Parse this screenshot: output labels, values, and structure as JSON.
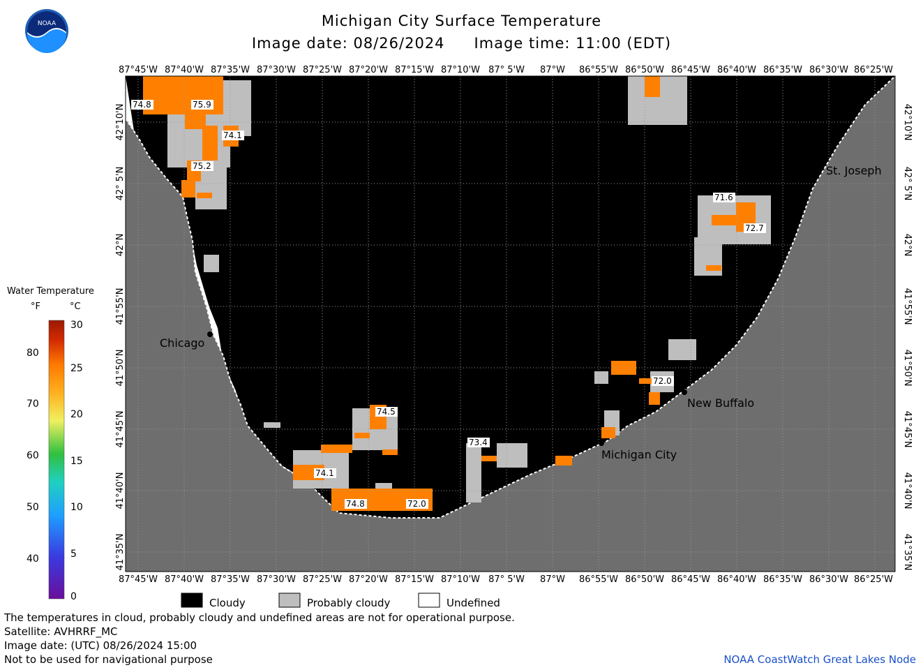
{
  "title": "Michigan City Surface Temperature",
  "image_date_label": "Image date: 08/26/2024",
  "image_time_label": "Image time: 11:00 (EDT)",
  "lon_labels": [
    "87°45'W",
    "87°40'W",
    "87°35'W",
    "87°30'W",
    "87°25'W",
    "87°20'W",
    "87°15'W",
    "87°10'W",
    "87° 5'W",
    "87°W",
    "86°55'W",
    "86°50'W",
    "86°45'W",
    "86°40'W",
    "86°35'W",
    "86°30'W",
    "86°25'W"
  ],
  "lat_labels": [
    "42°10'N",
    "42° 5'N",
    "42°N",
    "41°55'N",
    "41°50'N",
    "41°45'N",
    "41°40'N",
    "41°35'N"
  ],
  "cities": [
    {
      "name": "Chicago"
    },
    {
      "name": "Michigan City"
    },
    {
      "name": "New Buffalo"
    },
    {
      "name": "St. Joseph"
    }
  ],
  "temp_labels": [
    "74.8",
    "75.9",
    "74.1",
    "75.2",
    "71.6",
    "72.7",
    "72.0",
    "74.5",
    "73.4",
    "74.1",
    "74.8",
    "72.0"
  ],
  "legend": {
    "title": "Water Temperature",
    "unit_f": "°F",
    "unit_c": "°C",
    "f_ticks": [
      "80",
      "70",
      "60",
      "50",
      "40"
    ],
    "c_ticks": [
      "30",
      "25",
      "20",
      "15",
      "10",
      "5",
      "0"
    ]
  },
  "key": [
    {
      "label": "Cloudy",
      "color": "#000000"
    },
    {
      "label": "Probably cloudy",
      "color": "#bebebe"
    },
    {
      "label": "Undefined",
      "color": "#ffffff"
    }
  ],
  "footer": {
    "note": "The temperatures in cloud, probably cloudy and undefined areas are not for operational purpose.",
    "satellite": "Satellite: AVHRRF_MC",
    "utc_date": "Image date: (UTC) 08/26/2024  15:00",
    "nav_warning": "Not to be used for navigational purpose",
    "credit": "NOAA CoastWatch Great Lakes Node"
  },
  "colors": {
    "land": "#6e6e6e",
    "cloudy": "#000000",
    "probably_cloudy": "#bebebe",
    "water_warm": "#ff8000",
    "credit": "#1a50c8"
  },
  "logo_text": "NOAA"
}
